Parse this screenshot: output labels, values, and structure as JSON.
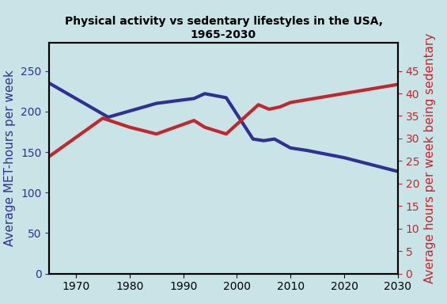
{
  "chart_data": {
    "type": "line",
    "title": "Physical activity vs sedentary lifestyles in the USA,\n1965-2030",
    "ylabel": "Average MET-hours per week",
    "y2label": "Average hours per week being sedentary",
    "xlim": [
      1965,
      2030
    ],
    "xticks": [
      1970,
      1980,
      1990,
      2000,
      2010,
      2020,
      2030
    ],
    "ylim": [
      0,
      285
    ],
    "yticks": [
      0,
      50,
      100,
      150,
      200,
      250
    ],
    "y2lim": [
      0,
      51.3
    ],
    "y2ticks": [
      0,
      5,
      10,
      15,
      20,
      25,
      30,
      35,
      40,
      45
    ],
    "grid": false,
    "series": [
      {
        "color": "#2e3192",
        "x": [
          1965,
          1976,
          1985,
          1992,
          1994,
          1998,
          2003,
          2005,
          2007,
          2010,
          2013,
          2020,
          2030
        ],
        "values": [
          235,
          193,
          210,
          216,
          222,
          217,
          166,
          164,
          166,
          155,
          152,
          143,
          126
        ]
      },
      {
        "color": "#c1272d",
        "axis": "y2",
        "x": [
          1965,
          1975,
          1980,
          1985,
          1992,
          1994,
          1998,
          2004,
          2006,
          2008,
          2010,
          2030
        ],
        "values": [
          26,
          34.5,
          32.5,
          31,
          34,
          32.5,
          31,
          37.5,
          36.5,
          37,
          38,
          42
        ]
      }
    ]
  }
}
